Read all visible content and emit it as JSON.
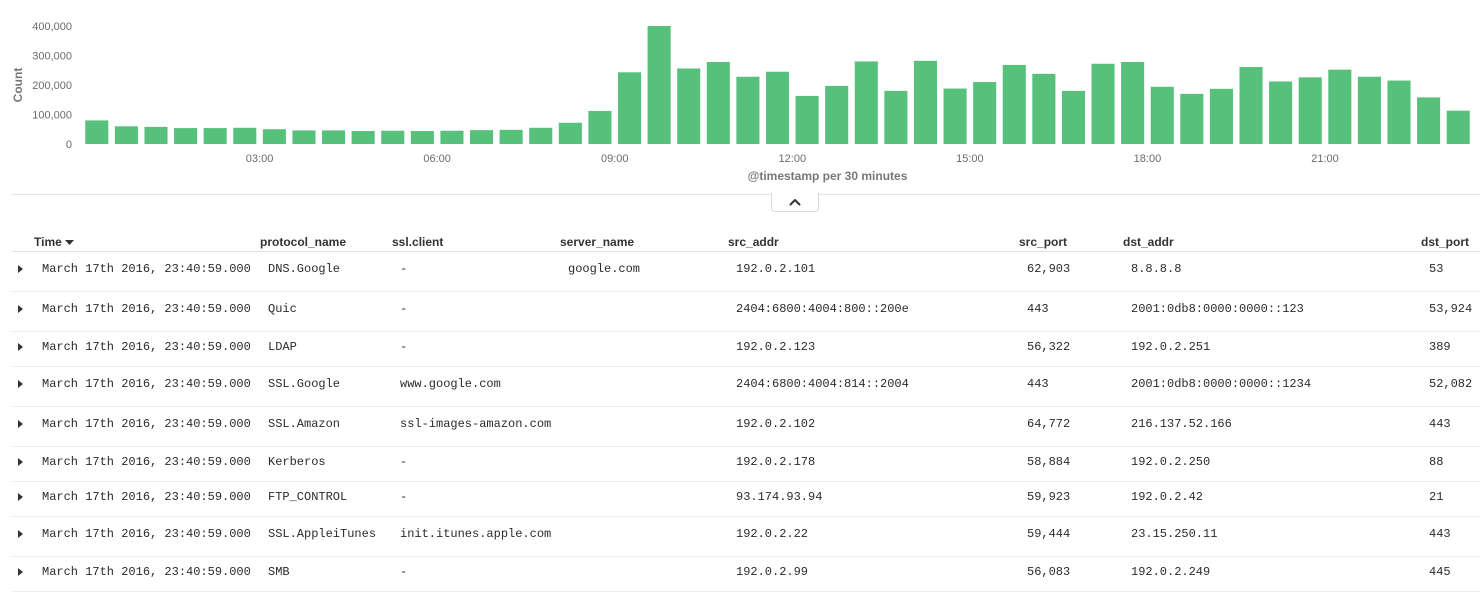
{
  "chart_data": {
    "type": "bar",
    "title": "",
    "xlabel": "@timestamp per 30 minutes",
    "ylabel": "Count",
    "ylim": [
      0,
      400000
    ],
    "y_ticks": [
      "0",
      "100,000",
      "200,000",
      "300,000",
      "400,000"
    ],
    "x_ticks": [
      "03:00",
      "06:00",
      "09:00",
      "12:00",
      "15:00",
      "18:00",
      "21:00"
    ],
    "grid": false,
    "bar_color": "#57c17b",
    "x": [
      "00:00",
      "00:30",
      "01:00",
      "01:30",
      "02:00",
      "02:30",
      "03:00",
      "03:30",
      "04:00",
      "04:30",
      "05:00",
      "05:30",
      "06:00",
      "06:30",
      "07:00",
      "07:30",
      "08:00",
      "08:30",
      "09:00",
      "09:30",
      "10:00",
      "10:30",
      "11:00",
      "11:30",
      "12:00",
      "12:30",
      "13:00",
      "13:30",
      "14:00",
      "14:30",
      "15:00",
      "15:30",
      "16:00",
      "16:30",
      "17:00",
      "17:30",
      "18:00",
      "18:30",
      "19:00",
      "19:30",
      "20:00",
      "20:30",
      "21:00",
      "21:30",
      "22:00",
      "22:30",
      "23:00"
    ],
    "values": [
      80000,
      60000,
      58000,
      54000,
      54000,
      55000,
      50000,
      46000,
      46000,
      44000,
      45000,
      44000,
      45000,
      47000,
      48000,
      55000,
      72000,
      112000,
      243000,
      400000,
      256000,
      278000,
      228000,
      245000,
      163000,
      197000,
      280000,
      180000,
      282000,
      188000,
      210000,
      268000,
      238000,
      180000,
      272000,
      278000,
      194000,
      170000,
      187000,
      261000,
      212000,
      226000,
      252000,
      228000,
      215000,
      158000,
      113000
    ]
  },
  "collapse_button": {
    "icon": "chevron-up-icon"
  },
  "table": {
    "columns": [
      {
        "key": "time",
        "label": "Time",
        "sortable": true
      },
      {
        "key": "protocol_name",
        "label": "protocol_name"
      },
      {
        "key": "ssl_client",
        "label": "ssl.client"
      },
      {
        "key": "server_name",
        "label": "server_name"
      },
      {
        "key": "src_addr",
        "label": "src_addr"
      },
      {
        "key": "src_port",
        "label": "src_port"
      },
      {
        "key": "dst_addr",
        "label": "dst_addr"
      },
      {
        "key": "dst_port",
        "label": "dst_port"
      }
    ],
    "rows": [
      {
        "time": "March 17th 2016, 23:40:59.000",
        "protocol_name": "DNS.Google",
        "ssl_client": "-",
        "server_name": "google.com",
        "src_addr": "192.0.2.101",
        "src_port": "62,903",
        "dst_addr": "8.8.8.8",
        "dst_port": "53"
      },
      {
        "time": "March 17th 2016, 23:40:59.000",
        "protocol_name": "Quic",
        "ssl_client": "-",
        "server_name": "",
        "src_addr": "2404:6800:4004:800::200e",
        "src_port": "443",
        "dst_addr": "2001:0db8:0000:0000::123",
        "dst_port": "53,924"
      },
      {
        "time": "March 17th 2016, 23:40:59.000",
        "protocol_name": "LDAP",
        "ssl_client": "-",
        "server_name": "",
        "src_addr": "192.0.2.123",
        "src_port": "56,322",
        "dst_addr": "192.0.2.251",
        "dst_port": "389"
      },
      {
        "time": "March 17th 2016, 23:40:59.000",
        "protocol_name": "SSL.Google",
        "ssl_client": "www.google.com",
        "server_name": "",
        "src_addr": "2404:6800:4004:814::2004",
        "src_port": "443",
        "dst_addr": "2001:0db8:0000:0000::1234",
        "dst_port": "52,082"
      },
      {
        "time": "March 17th 2016, 23:40:59.000",
        "protocol_name": "SSL.Amazon",
        "ssl_client": "ssl-images-amazon.com",
        "server_name": "",
        "src_addr": "192.0.2.102",
        "src_port": "64,772",
        "dst_addr": "216.137.52.166",
        "dst_port": "443"
      },
      {
        "time": "March 17th 2016, 23:40:59.000",
        "protocol_name": "Kerberos",
        "ssl_client": "-",
        "server_name": "",
        "src_addr": "192.0.2.178",
        "src_port": "58,884",
        "dst_addr": "192.0.2.250",
        "dst_port": "88"
      },
      {
        "time": "March 17th 2016, 23:40:59.000",
        "protocol_name": "FTP_CONTROL",
        "ssl_client": "-",
        "server_name": "",
        "src_addr": "93.174.93.94",
        "src_port": "59,923",
        "dst_addr": "192.0.2.42",
        "dst_port": "21"
      },
      {
        "time": "March 17th 2016, 23:40:59.000",
        "protocol_name": "SSL.AppleiTunes",
        "ssl_client": "init.itunes.apple.com",
        "server_name": "",
        "src_addr": "192.0.2.22",
        "src_port": "59,444",
        "dst_addr": "23.15.250.11",
        "dst_port": "443"
      },
      {
        "time": "March 17th 2016, 23:40:59.000",
        "protocol_name": "SMB",
        "ssl_client": "-",
        "server_name": "",
        "src_addr": "192.0.2.99",
        "src_port": "56,083",
        "dst_addr": "192.0.2.249",
        "dst_port": "445"
      }
    ]
  }
}
